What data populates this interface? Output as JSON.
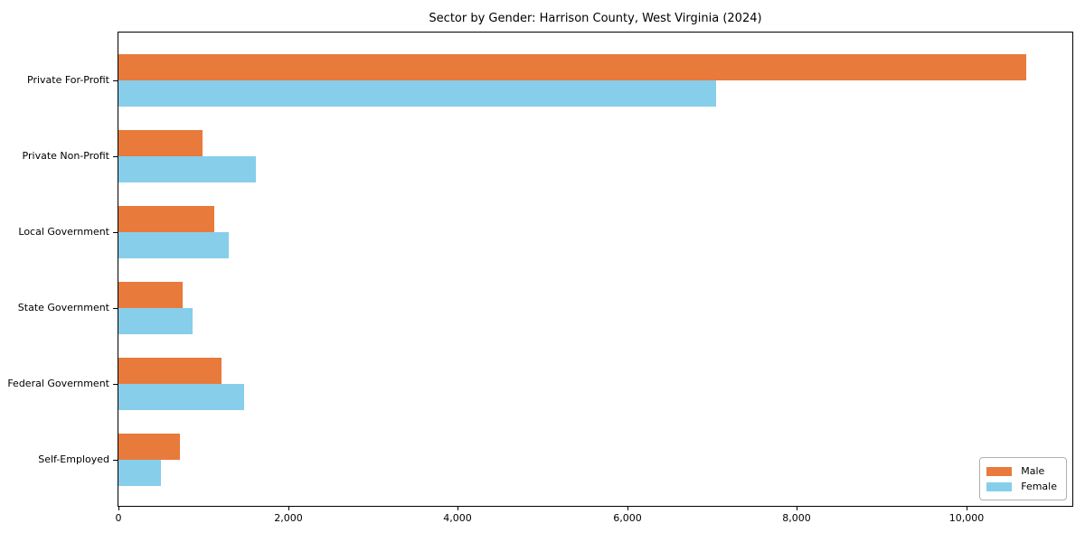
{
  "title": "Sector by Gender: Harrison County, West Virginia (2024)",
  "legend": {
    "position": "lower right",
    "items": [
      {
        "label": "Male",
        "color": "#E87A3C"
      },
      {
        "label": "Female",
        "color": "#87CEEB"
      }
    ]
  },
  "chart_data": {
    "type": "bar",
    "orientation": "horizontal",
    "title": "Sector by Gender: Harrison County, West Virginia (2024)",
    "categories": [
      "Private For-Profit",
      "Private Non-Profit",
      "Local Government",
      "State Government",
      "Federal Government",
      "Self-Employed"
    ],
    "series": [
      {
        "name": "Male",
        "color": "#E87A3C",
        "values": [
          10710,
          990,
          1135,
          760,
          1220,
          725
        ]
      },
      {
        "name": "Female",
        "color": "#87CEEB",
        "values": [
          7050,
          1625,
          1300,
          875,
          1480,
          500
        ]
      }
    ],
    "xlabel": "",
    "ylabel": "",
    "xlim": [
      0,
      11250
    ],
    "xticks": [
      0,
      2000,
      4000,
      6000,
      8000,
      10000
    ],
    "xtick_labels": [
      "0",
      "2,000",
      "4,000",
      "6,000",
      "8,000",
      "10,000"
    ],
    "grid": false,
    "legend_position": "lower right"
  }
}
